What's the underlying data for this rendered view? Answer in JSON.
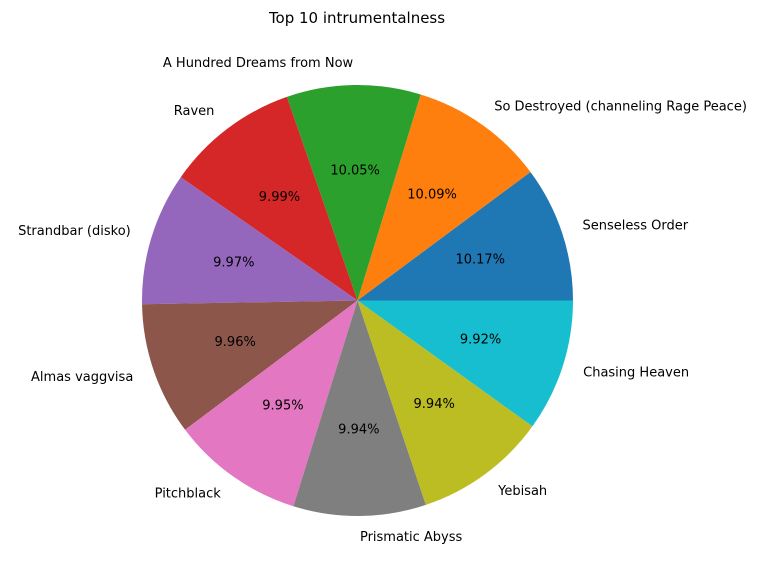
{
  "chart_data": {
    "type": "pie",
    "title": "Top 10 intrumentalness",
    "categories": [
      "Senseless Order",
      "So Destroyed (channeling Rage Peace)",
      "A Hundred Dreams from Now",
      "Raven",
      "Strandbar (disko)",
      "Almas vaggvisa",
      "Pitchblack",
      "Prismatic Abyss",
      "Yebisah",
      "Chasing Heaven"
    ],
    "values": [
      10.17,
      10.09,
      10.05,
      9.99,
      9.97,
      9.96,
      9.95,
      9.94,
      9.94,
      9.92
    ],
    "percent_labels": [
      "10.17%",
      "10.09%",
      "10.05%",
      "9.99%",
      "9.97%",
      "9.96%",
      "9.95%",
      "9.94%",
      "9.94%",
      "9.92%"
    ],
    "colors": [
      "#1f77b4",
      "#ff7f0e",
      "#2ca02c",
      "#d62728",
      "#9467bd",
      "#8c564b",
      "#e377c2",
      "#7f7f7f",
      "#bcbd22",
      "#17becf"
    ],
    "start_angle_deg": 0,
    "direction": "counterclockwise",
    "legend": "none"
  }
}
